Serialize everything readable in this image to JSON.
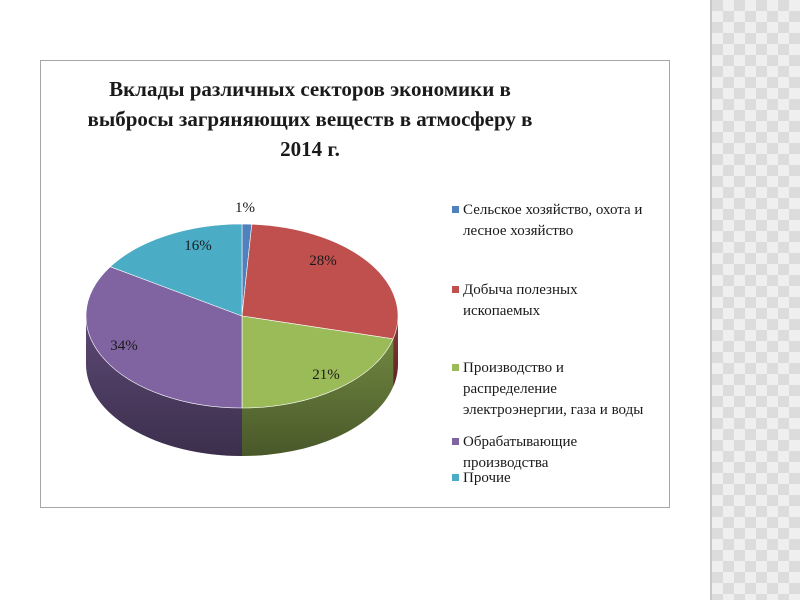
{
  "chart_data": {
    "type": "pie",
    "title_lines": [
      "Вклады различных секторов экономики в",
      "выбросы загряняющих веществ  в атмосферу в",
      "2014 г."
    ],
    "slices": [
      {
        "label": "Сельское хозяйство, охота и\nлесное хозяйство",
        "value": 1,
        "value_label": "1%",
        "color": "#4f81bd"
      },
      {
        "label": "Добыча полезных\nископаемых",
        "value": 28,
        "value_label": "28%",
        "color": "#c0504d"
      },
      {
        "label": "Производство и\nраспределение\nэлектроэнергии, газа и воды",
        "value": 21,
        "value_label": "21%",
        "color": "#9bbb59"
      },
      {
        "label": "Обрабатывающие\nпроизводства",
        "value": 34,
        "value_label": "34%",
        "color": "#8064a2"
      },
      {
        "label": "Прочие",
        "value": 16,
        "value_label": "16%",
        "color": "#4bacc6"
      }
    ],
    "legend_position": "right",
    "style": "3d"
  }
}
